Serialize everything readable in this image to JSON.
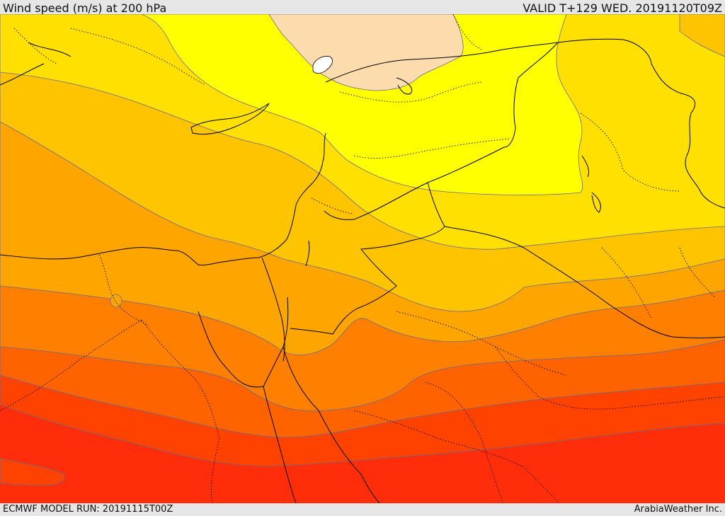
{
  "header": {
    "title": "Wind speed (m/s) at 200 hPa",
    "valid": "VALID T+129 WED. 20191120T09Z"
  },
  "footer": {
    "model_run": "ECMWF MODEL RUN: 20191115T00Z",
    "credit": "ArabiaWeather Inc."
  },
  "map": {
    "variable": "wind speed at 200 hPa",
    "colors": {
      "lowest_band": "#fcdcac",
      "band_1": "#ffff00",
      "band_2": "#ffe000",
      "band_3": "#ffc400",
      "band_4": "#ffa500",
      "band_5": "#ff8000",
      "band_6": "#ff6300",
      "band_7": "#ff4200",
      "band_8": "#ff2d0a",
      "contour_line": "#6a6a8a",
      "coastline": "#000000",
      "borders": "#000000"
    },
    "icons": [
      "contour-band",
      "coastline",
      "national-border",
      "regional-border"
    ]
  }
}
